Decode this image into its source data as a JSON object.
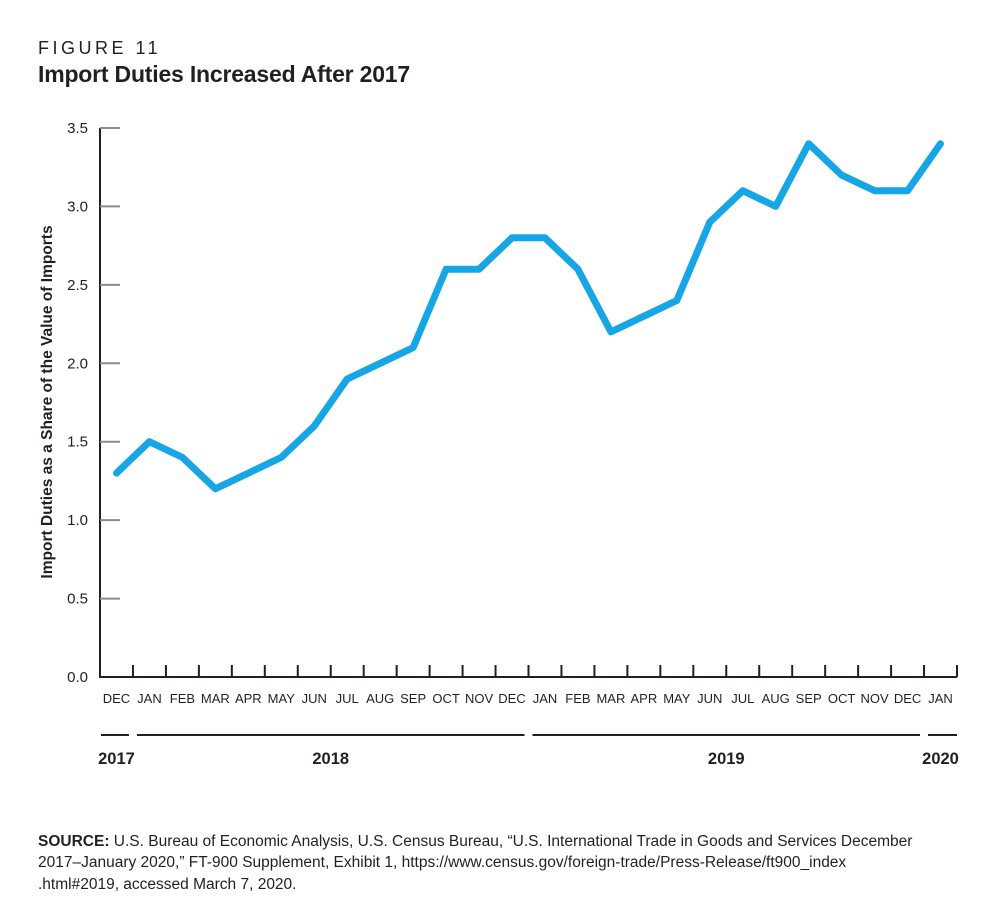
{
  "figure": {
    "label": "FIGURE 11",
    "title": "Import Duties Increased After 2017"
  },
  "colors": {
    "line": "#17a6e5",
    "text": "#231f20",
    "axis": "#231f20",
    "tick_gray": "#8a8b8e"
  },
  "chart_data": {
    "type": "line",
    "title": "Import Duties Increased After 2017",
    "ylabel": "Import Duties as a Share of the Value of Imports",
    "xlabel": "",
    "ylim": [
      0,
      3.5
    ],
    "ytick_labels": [
      "0.0",
      "0.5",
      "1.0",
      "1.5",
      "2.0",
      "2.5",
      "3.0",
      "3.5"
    ],
    "grid": false,
    "legend": "none",
    "categories": [
      "DEC",
      "JAN",
      "FEB",
      "MAR",
      "APR",
      "MAY",
      "JUN",
      "JUL",
      "AUG",
      "SEP",
      "OCT",
      "NOV",
      "DEC",
      "JAN",
      "FEB",
      "MAR",
      "APR",
      "MAY",
      "JUN",
      "JUL",
      "AUG",
      "SEP",
      "OCT",
      "NOV",
      "DEC",
      "JAN"
    ],
    "values": [
      1.3,
      1.5,
      1.4,
      1.2,
      1.3,
      1.4,
      1.6,
      1.9,
      2.0,
      2.1,
      2.6,
      2.6,
      2.8,
      2.8,
      2.6,
      2.2,
      2.3,
      2.4,
      2.9,
      3.1,
      3.0,
      3.4,
      3.2,
      3.1,
      3.1,
      3.4
    ],
    "series_name": "Import duties as a share of the value of imports",
    "years": [
      {
        "label": "2017",
        "start": 0,
        "end": 1
      },
      {
        "label": "2018",
        "start": 1,
        "end": 13
      },
      {
        "label": "2019",
        "start": 13,
        "end": 25
      },
      {
        "label": "2020",
        "start": 25,
        "end": 26
      }
    ]
  },
  "source": {
    "label": "SOURCE:",
    "lines": [
      "U.S. Bureau of Economic Analysis, U.S. Census Bureau, “U.S. International Trade in Goods and Services December",
      "2017–January 2020,” FT-900 Supplement, Exhibit 1, https://www.census.gov/foreign-trade/Press-Release/ft900_index",
      ".html#2019, accessed March 7, 2020."
    ]
  }
}
